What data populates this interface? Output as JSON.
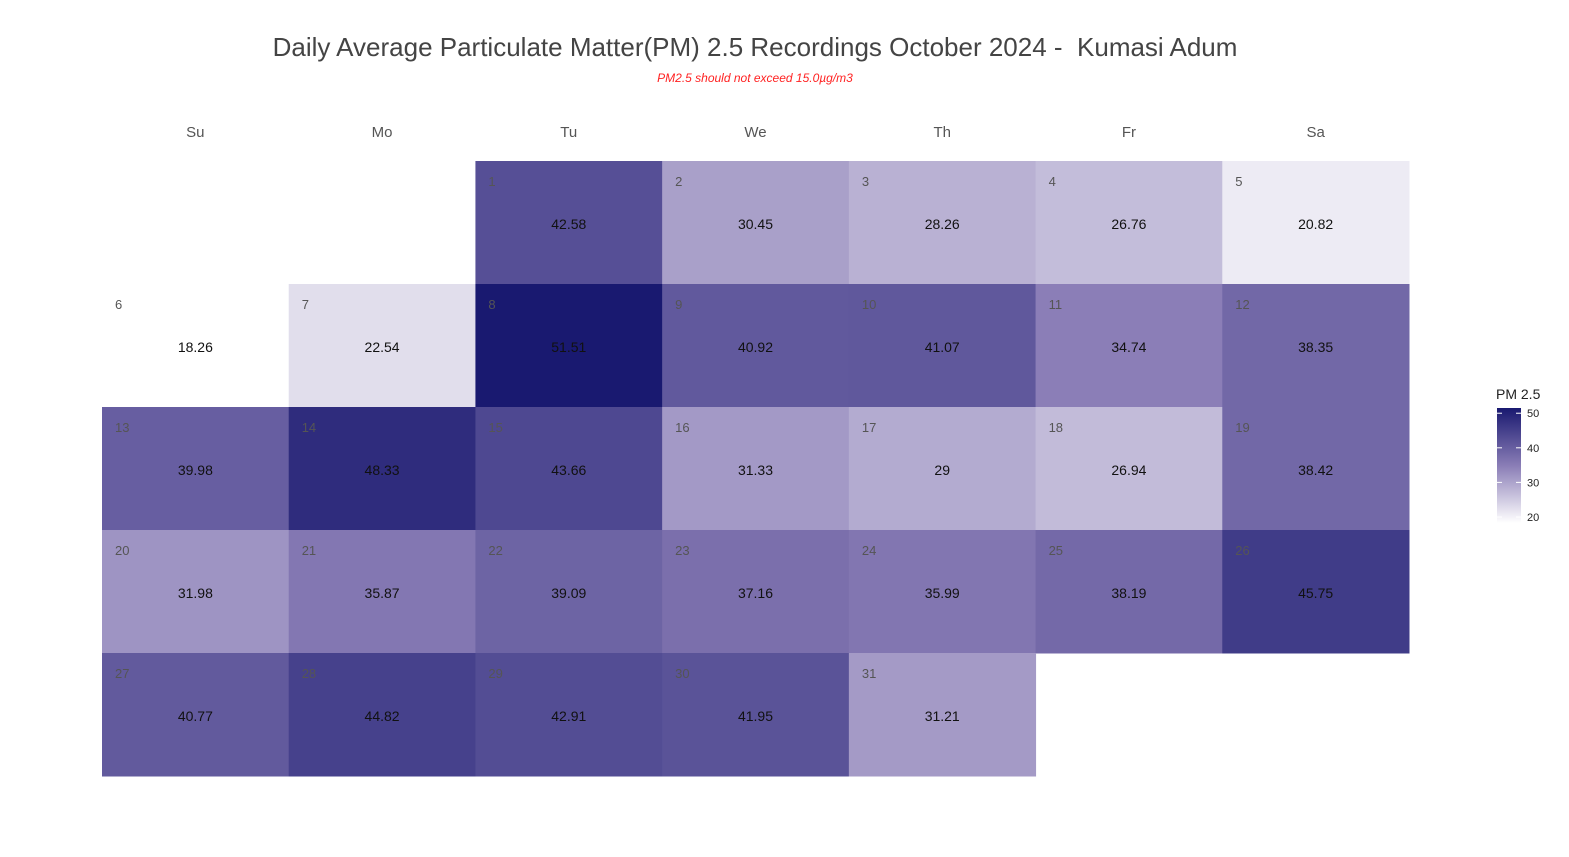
{
  "chart_data": {
    "type": "heatmap",
    "title": "Daily Average Particulate Matter(PM) 2.5 Recordings October 2024 -  Kumasi Adum",
    "subtitle": "PM2.5 should not exceed 15.0µg/m3",
    "weekdays": [
      "Su",
      "Mo",
      "Tu",
      "We",
      "Th",
      "Fr",
      "Sa"
    ],
    "first_weekday_index": 2,
    "days": [
      1,
      2,
      3,
      4,
      5,
      6,
      7,
      8,
      9,
      10,
      11,
      12,
      13,
      14,
      15,
      16,
      17,
      18,
      19,
      20,
      21,
      22,
      23,
      24,
      25,
      26,
      27,
      28,
      29,
      30,
      31
    ],
    "values": [
      42.58,
      30.45,
      28.26,
      26.76,
      20.82,
      18.26,
      22.54,
      51.51,
      40.92,
      41.07,
      34.74,
      38.35,
      39.98,
      48.33,
      43.66,
      31.33,
      29,
      26.94,
      38.42,
      31.98,
      35.87,
      39.09,
      37.16,
      35.99,
      38.19,
      45.75,
      40.77,
      44.82,
      42.91,
      41.95,
      31.21
    ],
    "value_labels": [
      "42.58",
      "30.45",
      "28.26",
      "26.76",
      "20.82",
      "18.26",
      "22.54",
      "51.51",
      "40.92",
      "41.07",
      "34.74",
      "38.35",
      "39.98",
      "48.33",
      "43.66",
      "31.33",
      "29",
      "26.94",
      "38.42",
      "31.98",
      "35.87",
      "39.09",
      "37.16",
      "35.99",
      "38.19",
      "45.75",
      "40.77",
      "44.82",
      "42.91",
      "41.95",
      "31.21"
    ],
    "legend": {
      "title": "PM 2.5",
      "ticks": [
        20,
        30,
        40,
        50
      ],
      "range": [
        18.26,
        51.51
      ],
      "placement": "right"
    },
    "color_scale": {
      "low": "#ffffff",
      "mid": "#8a7db6",
      "high": "#191970"
    }
  }
}
